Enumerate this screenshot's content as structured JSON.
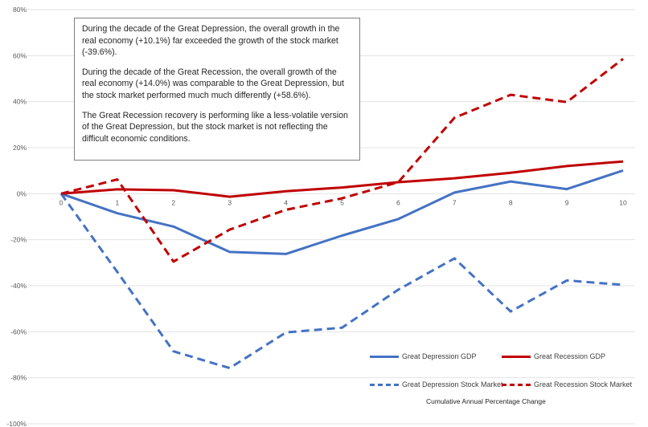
{
  "annotation": {
    "paragraphs": [
      "During the decade of the Great Depression, the overall growth in the real economy (+10.1%) far exceeded the growth of the stock market (-39.6%).",
      "During the decade of the Great Recession, the overall growth of the real economy (+14.0%) was comparable to the Great Depression, but the stock market performed much much differently (+58.6%).",
      "The Great Recession recovery is performing like a less-volatile version of the Great Depression, but the stock market is not reflecting the difficult economic conditions."
    ]
  },
  "legend": {
    "caption": "Cumulative Annual Percentage Change"
  },
  "chart_data": {
    "type": "line",
    "x": [
      0,
      1,
      2,
      3,
      4,
      5,
      6,
      7,
      8,
      9,
      10
    ],
    "x_tick_labels": [
      "0",
      "1",
      "2",
      "3",
      "4",
      "5",
      "6",
      "7",
      "8",
      "9",
      "10"
    ],
    "ylim": [
      -100,
      80
    ],
    "y_ticks": [
      80,
      60,
      40,
      20,
      0,
      -20,
      -40,
      -60,
      -80,
      -100
    ],
    "y_tick_labels": [
      "80%",
      "60%",
      "40%",
      "20%",
      "0%",
      "-20%",
      "-40%",
      "-60%",
      "-80%",
      "-100%"
    ],
    "grid": "horizontal",
    "legend_position": "bottom-right",
    "series": [
      {
        "name": "Great Depression GDP",
        "color": "#4472c4",
        "style": "solid",
        "values": [
          0,
          -8.5,
          -14.3,
          -25.3,
          -26.2,
          -18.2,
          -11.0,
          0.5,
          5.3,
          2.0,
          10.1
        ]
      },
      {
        "name": "Great Recession GDP",
        "color": "#c00000",
        "style": "solid",
        "values": [
          0,
          1.9,
          1.5,
          -1.3,
          1.1,
          2.7,
          5.0,
          6.7,
          9.1,
          12.0,
          14.0
        ]
      },
      {
        "name": "Great Depression Stock Market",
        "color": "#4472c4",
        "style": "dashed",
        "values": [
          0,
          -34.0,
          -68.5,
          -75.8,
          -60.3,
          -58.2,
          -41.7,
          -28.1,
          -51.2,
          -37.7,
          -39.6
        ]
      },
      {
        "name": "Great Recession Stock Market",
        "color": "#c00000",
        "style": "dashed",
        "values": [
          0,
          6.2,
          -29.5,
          -15.6,
          -7.0,
          -2.0,
          5.0,
          33.0,
          43.0,
          39.8,
          58.6
        ]
      }
    ]
  }
}
